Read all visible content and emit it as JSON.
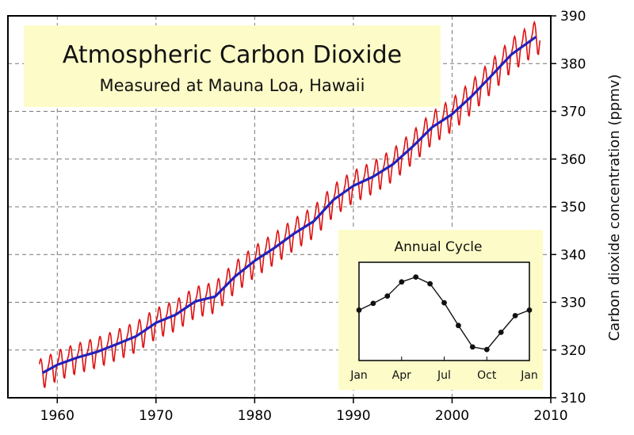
{
  "chart_data": {
    "type": "line",
    "title": "Atmospheric Carbon Dioxide",
    "subtitle": "Measured at Mauna Loa, Hawaii",
    "ylabel": "Carbon dioxide concentration (ppmv)",
    "xlabel": "",
    "xlim": [
      1955,
      2010
    ],
    "ylim": [
      310,
      390
    ],
    "x_ticks": [
      1960,
      1970,
      1980,
      1990,
      2000,
      2010
    ],
    "y_ticks": [
      310,
      320,
      330,
      340,
      350,
      360,
      370,
      380,
      390
    ],
    "grid": true,
    "colors": {
      "monthly": "#dd1111",
      "trend": "#2222bb",
      "panel": "#fdfcc8"
    },
    "series": [
      {
        "key": "trend",
        "x": [
          1958.5,
          1960,
          1962,
          1964,
          1966,
          1968,
          1970,
          1972,
          1974,
          1976,
          1978,
          1980,
          1982,
          1984,
          1986,
          1988,
          1990,
          1992,
          1994,
          1996,
          1998,
          2000,
          2002,
          2004,
          2006,
          2008.5
        ],
        "values": [
          315.2,
          316.9,
          318.4,
          319.6,
          321.2,
          322.9,
          325.7,
          327.4,
          330.2,
          331.2,
          335.4,
          338.7,
          341.4,
          344.4,
          347.0,
          351.5,
          354.4,
          356.3,
          358.9,
          362.6,
          366.7,
          369.4,
          373.2,
          377.5,
          381.9,
          385.6
        ]
      },
      {
        "key": "monthly",
        "amplitude": [
          3.2,
          3.6
        ],
        "phase_note": "seasonal oscillation superimposed on the trend, following the annual cycle"
      }
    ],
    "inset": {
      "title": "Annual Cycle",
      "x_ticks": [
        "Jan",
        "Apr",
        "Jul",
        "Oct",
        "Jan"
      ],
      "values": [
        0.2,
        1.3,
        2.5,
        4.8,
        5.6,
        4.5,
        1.4,
        -2.3,
        -5.8,
        -6.2,
        -3.4,
        -0.7,
        0.2
      ]
    }
  }
}
